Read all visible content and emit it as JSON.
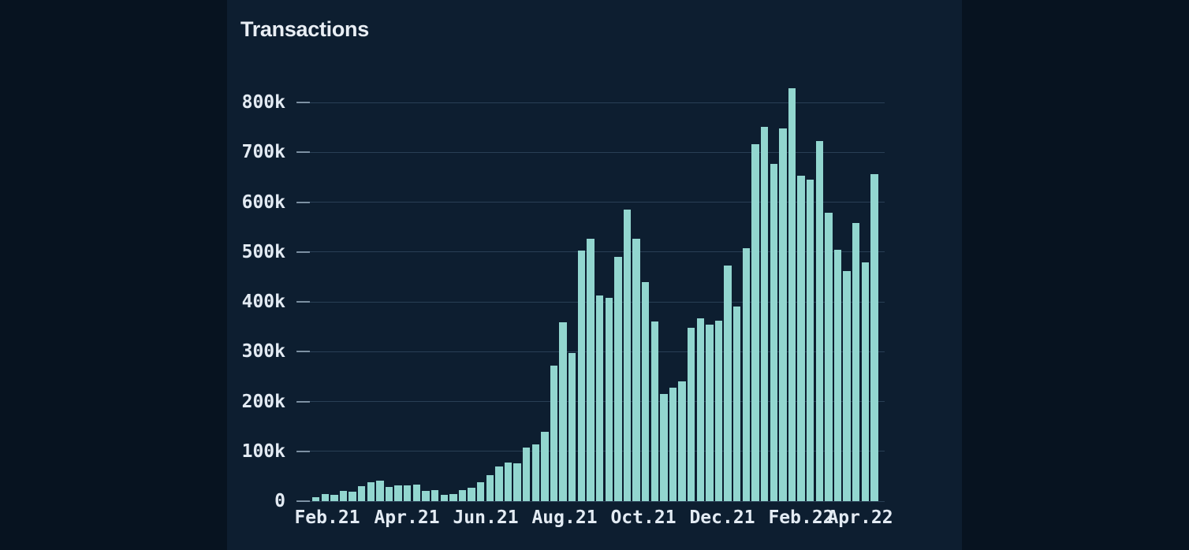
{
  "chart_data": {
    "type": "bar",
    "title": "Transactions",
    "x_tick_labels": [
      "Feb.21",
      "Apr.21",
      "Jun.21",
      "Aug.21",
      "Oct.21",
      "Dec.21",
      "Feb.22",
      "Apr.22"
    ],
    "y_tick_labels": [
      "0",
      "100k",
      "200k",
      "300k",
      "400k",
      "500k",
      "600k",
      "700k",
      "800k"
    ],
    "y_tick_values_k": [
      0,
      100,
      200,
      300,
      400,
      500,
      600,
      700,
      800
    ],
    "ylim_k": [
      0,
      800
    ],
    "grid": "horizontal",
    "legend": "none",
    "values_unit": "k",
    "weekly_values_k": [
      8,
      15,
      13,
      20,
      19,
      30,
      38,
      41,
      28,
      32,
      32,
      33,
      20,
      22,
      13,
      15,
      22,
      27,
      38,
      52,
      70,
      77,
      76,
      107,
      114,
      139,
      272,
      359,
      297,
      503,
      527,
      413,
      408,
      490,
      585,
      527,
      440,
      360,
      215,
      228,
      240,
      348,
      367,
      354,
      362,
      473,
      390,
      507,
      716,
      751,
      677,
      748,
      828,
      653,
      645,
      722,
      579,
      504,
      461,
      558,
      479,
      656
    ],
    "colors": {
      "bar": "#92d6cf",
      "card_background": "#0d1e30",
      "page_background": "#071320",
      "grid_line": "rgba(125,160,195,0.26)",
      "grid_tick": "rgba(205,225,242,0.55)",
      "axis_text": "#e3ebf3",
      "title_text": "#e9eef4"
    }
  }
}
